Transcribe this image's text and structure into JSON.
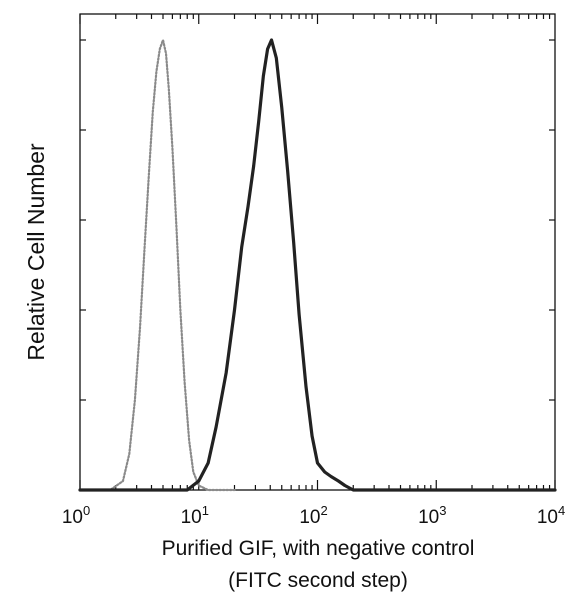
{
  "chart_data": {
    "type": "line",
    "title": "",
    "xlabel": "Purified GIF, with negative control",
    "xlabel_line2": "(FITC second step)",
    "ylabel": "Relative Cell Number",
    "x_scale": "log",
    "xlim": [
      1,
      10000
    ],
    "ylim": [
      0,
      1
    ],
    "grid": false,
    "legend": "none",
    "x_ticks": [
      {
        "value": 1,
        "base": "10",
        "exp": "0"
      },
      {
        "value": 10,
        "base": "10",
        "exp": "1"
      },
      {
        "value": 100,
        "base": "10",
        "exp": "2"
      },
      {
        "value": 1000,
        "base": "10",
        "exp": "3"
      },
      {
        "value": 10000,
        "base": "10",
        "exp": "4"
      }
    ],
    "series": [
      {
        "style": "dotted",
        "color": "#8a8a8a",
        "x": [
          1.0,
          1.8,
          2.3,
          2.6,
          2.9,
          3.2,
          3.5,
          3.8,
          4.1,
          4.4,
          4.7,
          5.0,
          5.3,
          5.6,
          6.0,
          6.5,
          7.0,
          7.6,
          8.3,
          9.0,
          10.0,
          12.0,
          20.0
        ],
        "y": [
          0.0,
          0.0,
          0.02,
          0.08,
          0.2,
          0.36,
          0.54,
          0.7,
          0.84,
          0.93,
          0.98,
          1.0,
          0.97,
          0.89,
          0.76,
          0.58,
          0.4,
          0.24,
          0.11,
          0.04,
          0.01,
          0.0,
          0.0
        ]
      },
      {
        "style": "solid",
        "color": "#222222",
        "x": [
          1.0,
          8.0,
          10.0,
          12.0,
          14.0,
          17.0,
          20.0,
          23.0,
          26.0,
          29.0,
          32.0,
          35.0,
          38.0,
          41.0,
          45.0,
          50.0,
          56.0,
          63.0,
          70.0,
          80.0,
          90.0,
          100.0,
          115.0,
          130.0,
          150.0,
          170.0,
          200.0,
          300.0,
          10000.0
        ],
        "y": [
          0.0,
          0.0,
          0.02,
          0.06,
          0.14,
          0.26,
          0.4,
          0.54,
          0.63,
          0.72,
          0.82,
          0.92,
          0.98,
          1.0,
          0.96,
          0.85,
          0.71,
          0.55,
          0.39,
          0.23,
          0.12,
          0.06,
          0.04,
          0.03,
          0.02,
          0.01,
          0.0,
          0.0,
          0.0
        ]
      }
    ]
  }
}
